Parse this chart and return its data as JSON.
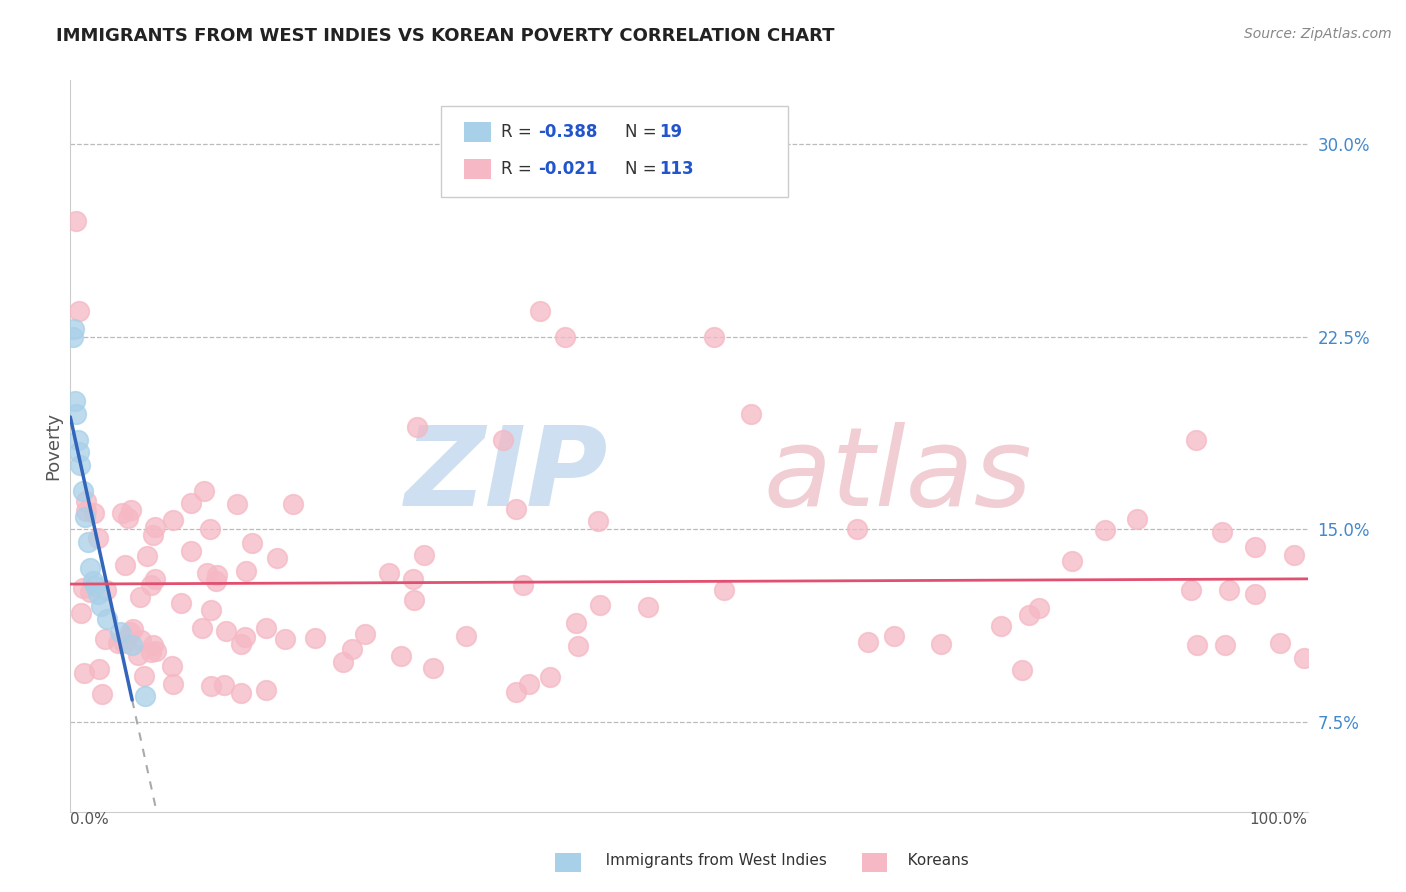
{
  "title": "IMMIGRANTS FROM WEST INDIES VS KOREAN POVERTY CORRELATION CHART",
  "source": "Source: ZipAtlas.com",
  "ylabel": "Poverty",
  "yticks": [
    0.075,
    0.15,
    0.225,
    0.3
  ],
  "ytick_labels": [
    "7.5%",
    "15.0%",
    "22.5%",
    "30.0%"
  ],
  "xmin": 0.0,
  "xmax": 1.0,
  "ymin": 0.04,
  "ymax": 0.325,
  "legend_r1": "-0.388",
  "legend_n1": "19",
  "legend_r2": "-0.021",
  "legend_n2": "113",
  "label1": "Immigrants from West Indies",
  "label2": "Koreans",
  "color_blue": "#A8D0E8",
  "color_pink": "#F5B8C4",
  "line_blue": "#3366BB",
  "line_pink": "#E05070",
  "background_color": "#FFFFFF",
  "watermark_zip": "ZIP",
  "watermark_atlas": "atlas"
}
